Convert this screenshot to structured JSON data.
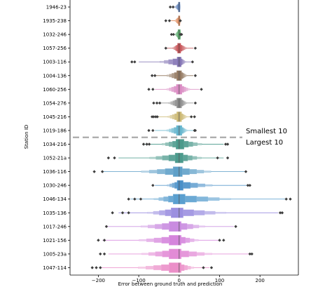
{
  "chart_data": {
    "type": "boxen",
    "orientation": "horizontal",
    "title": "",
    "xlabel": "Error between ground truth and prediction",
    "ylabel": "Station ID",
    "xlim": [
      -270,
      295
    ],
    "xticks": [
      -200,
      -100,
      0,
      100,
      200
    ],
    "xtick_labels": [
      "−200",
      "−100",
      "0",
      "100",
      "200"
    ],
    "reference_line_y_between": [
      "1019-186",
      "1034-216"
    ],
    "annotations": {
      "above": "Smallest 10",
      "below": "Largest 10"
    },
    "stations": [
      {
        "id": "1946-23",
        "color": "#4c72b0",
        "whisker": [
          -18,
          3
        ],
        "box": [
          -2,
          2
        ],
        "outliers": [
          -22,
          -15
        ]
      },
      {
        "id": "1935-238",
        "color": "#dd8452",
        "whisker": [
          -20,
          5
        ],
        "box": [
          -2,
          2
        ],
        "outliers": [
          -33,
          -24,
          3
        ]
      },
      {
        "id": "1032-246",
        "color": "#55a868",
        "whisker": [
          -17,
          7
        ],
        "box": [
          -3,
          3
        ],
        "outliers": [
          -19,
          -14,
          3,
          6
        ]
      },
      {
        "id": "1057-256",
        "color": "#c44e52",
        "whisker": [
          -30,
          35
        ],
        "box": [
          -4,
          4
        ],
        "outliers": [
          -33,
          40
        ]
      },
      {
        "id": "1003-116",
        "color": "#8172b3",
        "whisker": [
          -100,
          30
        ],
        "box": [
          -5,
          5
        ],
        "outliers": [
          -117,
          -110,
          33
        ]
      },
      {
        "id": "1004-136",
        "color": "#937860",
        "whisker": [
          -60,
          35
        ],
        "box": [
          -6,
          6
        ],
        "outliers": [
          -67,
          -60,
          40
        ]
      },
      {
        "id": "1060-256",
        "color": "#da8bc3",
        "whisker": [
          -60,
          50
        ],
        "box": [
          -7,
          7
        ],
        "outliers": [
          -75,
          -65,
          55
        ]
      },
      {
        "id": "1054-276",
        "color": "#8c8c8c",
        "whisker": [
          -50,
          35
        ],
        "box": [
          -6,
          6
        ],
        "outliers": [
          -63,
          -55,
          -48,
          40
        ]
      },
      {
        "id": "1045-216",
        "color": "#ccb974",
        "whisker": [
          -55,
          35
        ],
        "box": [
          -6,
          6
        ],
        "outliers": [
          -67,
          -63,
          -58,
          -54,
          30,
          38
        ]
      },
      {
        "id": "1019-186",
        "color": "#64b5cd",
        "whisker": [
          -60,
          35
        ],
        "box": [
          -7,
          7
        ],
        "outliers": [
          -75,
          -65,
          40,
          38
        ]
      },
      {
        "id": "1034-216",
        "color": "#4c9a8c",
        "whisker": [
          -85,
          110
        ],
        "box": [
          -8,
          12
        ],
        "outliers": [
          -88,
          -80,
          -74,
          115,
          120
        ]
      },
      {
        "id": "1052-21a",
        "color": "#4c9a8c",
        "whisker": [
          -150,
          110
        ],
        "box": [
          -10,
          10
        ],
        "outliers": [
          -175,
          -160,
          95,
          120
        ]
      },
      {
        "id": "1036-116",
        "color": "#5fa0c8",
        "whisker": [
          -190,
          165
        ],
        "box": [
          -15,
          8
        ],
        "outliers": [
          -210,
          -190,
          165
        ]
      },
      {
        "id": "1030-246",
        "color": "#4a90c8",
        "whisker": [
          -60,
          170
        ],
        "box": [
          -5,
          10
        ],
        "outliers": [
          -65,
          170,
          175
        ]
      },
      {
        "id": "1046-134",
        "color": "#5a9fcf",
        "whisker": [
          -120,
          265
        ],
        "box": [
          -15,
          15
        ],
        "outliers": [
          -125,
          -110,
          -95,
          265,
          275
        ]
      },
      {
        "id": "1035-136",
        "color": "#9b8fe0",
        "whisker": [
          -150,
          245
        ],
        "box": [
          -20,
          10
        ],
        "outliers": [
          -165,
          -140,
          -125,
          250,
          255
        ]
      },
      {
        "id": "1017-246",
        "color": "#c98be0",
        "whisker": [
          -180,
          135
        ],
        "box": [
          -25,
          5
        ],
        "outliers": [
          -180,
          140
        ]
      },
      {
        "id": "1021-156",
        "color": "#d585dc",
        "whisker": [
          -190,
          100
        ],
        "box": [
          -25,
          5
        ],
        "outliers": [
          -200,
          -185,
          100,
          110
        ]
      },
      {
        "id": "1005-23a",
        "color": "#e28bd6",
        "whisker": [
          -175,
          175
        ],
        "box": [
          -25,
          5
        ],
        "outliers": [
          -195,
          -185,
          175,
          180
        ]
      },
      {
        "id": "1047-114",
        "color": "#eb8fc8",
        "whisker": [
          -195,
          75
        ],
        "box": [
          -25,
          5
        ],
        "outliers": [
          -215,
          -205,
          -195,
          60,
          80
        ]
      }
    ]
  }
}
